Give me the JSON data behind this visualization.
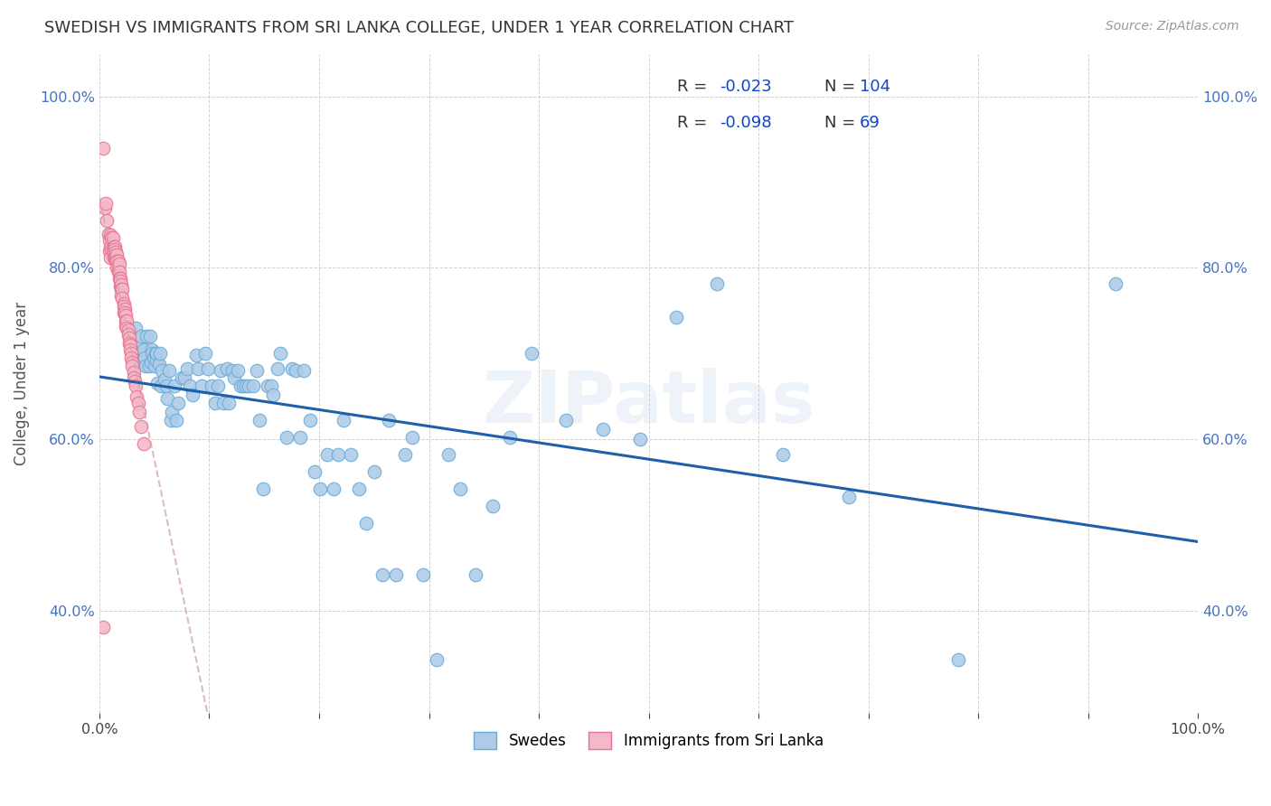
{
  "title": "SWEDISH VS IMMIGRANTS FROM SRI LANKA COLLEGE, UNDER 1 YEAR CORRELATION CHART",
  "source_text": "Source: ZipAtlas.com",
  "ylabel": "College, Under 1 year",
  "xlim": [
    0.0,
    1.0
  ],
  "ylim": [
    0.28,
    1.05
  ],
  "x_tick_labels": [
    "0.0%",
    "",
    "",
    "",
    "",
    "",
    "",
    "",
    "",
    "",
    "100.0%"
  ],
  "x_tick_vals": [
    0.0,
    0.1,
    0.2,
    0.3,
    0.4,
    0.5,
    0.6,
    0.7,
    0.8,
    0.9,
    1.0
  ],
  "y_tick_labels": [
    "40.0%",
    "60.0%",
    "80.0%",
    "100.0%"
  ],
  "y_tick_vals": [
    0.4,
    0.6,
    0.8,
    1.0
  ],
  "swedes_R": -0.023,
  "swedes_N": 104,
  "srilanka_R": -0.098,
  "srilanka_N": 69,
  "swede_color": "#aecce8",
  "srilanka_color": "#f5b8c8",
  "swede_edge_color": "#6aaad6",
  "srilanka_edge_color": "#e87090",
  "trend_blue": "#1f5faa",
  "trend_pink": "#cc6688",
  "legend_label_swedes": "Swedes",
  "legend_label_srilanka": "Immigrants from Sri Lanka",
  "watermark": "ZIPatlas",
  "background_color": "#ffffff",
  "swedes_x": [
    0.03,
    0.033,
    0.035,
    0.038,
    0.038,
    0.04,
    0.041,
    0.042,
    0.043,
    0.045,
    0.046,
    0.047,
    0.048,
    0.048,
    0.049,
    0.05,
    0.051,
    0.052,
    0.052,
    0.053,
    0.054,
    0.055,
    0.056,
    0.057,
    0.059,
    0.061,
    0.062,
    0.063,
    0.065,
    0.066,
    0.068,
    0.07,
    0.072,
    0.075,
    0.077,
    0.08,
    0.082,
    0.085,
    0.088,
    0.09,
    0.093,
    0.096,
    0.099,
    0.102,
    0.105,
    0.108,
    0.11,
    0.113,
    0.116,
    0.118,
    0.121,
    0.123,
    0.126,
    0.128,
    0.131,
    0.133,
    0.136,
    0.14,
    0.143,
    0.146,
    0.149,
    0.153,
    0.156,
    0.158,
    0.162,
    0.165,
    0.17,
    0.175,
    0.179,
    0.183,
    0.186,
    0.192,
    0.196,
    0.201,
    0.207,
    0.213,
    0.217,
    0.222,
    0.229,
    0.236,
    0.243,
    0.25,
    0.258,
    0.263,
    0.27,
    0.278,
    0.285,
    0.295,
    0.307,
    0.318,
    0.328,
    0.342,
    0.358,
    0.374,
    0.393,
    0.425,
    0.458,
    0.492,
    0.525,
    0.562,
    0.622,
    0.682,
    0.782,
    0.925
  ],
  "swedes_y": [
    0.7,
    0.73,
    0.69,
    0.71,
    0.72,
    0.705,
    0.695,
    0.685,
    0.72,
    0.685,
    0.72,
    0.69,
    0.705,
    0.7,
    0.695,
    0.685,
    0.7,
    0.692,
    0.7,
    0.665,
    0.688,
    0.7,
    0.662,
    0.68,
    0.67,
    0.662,
    0.648,
    0.68,
    0.622,
    0.632,
    0.662,
    0.622,
    0.642,
    0.672,
    0.672,
    0.682,
    0.662,
    0.652,
    0.698,
    0.682,
    0.662,
    0.7,
    0.682,
    0.662,
    0.642,
    0.662,
    0.68,
    0.642,
    0.682,
    0.642,
    0.68,
    0.672,
    0.68,
    0.662,
    0.662,
    0.662,
    0.662,
    0.662,
    0.68,
    0.622,
    0.542,
    0.662,
    0.662,
    0.652,
    0.682,
    0.7,
    0.602,
    0.682,
    0.68,
    0.602,
    0.68,
    0.622,
    0.562,
    0.542,
    0.582,
    0.542,
    0.582,
    0.622,
    0.582,
    0.542,
    0.502,
    0.562,
    0.442,
    0.622,
    0.442,
    0.582,
    0.602,
    0.442,
    0.342,
    0.582,
    0.542,
    0.442,
    0.522,
    0.602,
    0.7,
    0.622,
    0.612,
    0.6,
    0.742,
    0.782,
    0.582,
    0.532,
    0.342,
    0.782
  ],
  "srilanka_x": [
    0.003,
    0.005,
    0.006,
    0.007,
    0.008,
    0.009,
    0.009,
    0.01,
    0.01,
    0.01,
    0.011,
    0.011,
    0.012,
    0.012,
    0.013,
    0.013,
    0.014,
    0.014,
    0.014,
    0.015,
    0.015,
    0.015,
    0.016,
    0.016,
    0.016,
    0.017,
    0.017,
    0.017,
    0.018,
    0.018,
    0.018,
    0.019,
    0.019,
    0.019,
    0.02,
    0.02,
    0.02,
    0.021,
    0.021,
    0.022,
    0.022,
    0.022,
    0.023,
    0.023,
    0.024,
    0.024,
    0.024,
    0.025,
    0.025,
    0.026,
    0.026,
    0.027,
    0.027,
    0.028,
    0.028,
    0.029,
    0.029,
    0.03,
    0.03,
    0.031,
    0.031,
    0.032,
    0.033,
    0.034,
    0.035,
    0.036,
    0.038,
    0.04,
    0.003
  ],
  "srilanka_y": [
    0.94,
    0.87,
    0.875,
    0.855,
    0.84,
    0.832,
    0.82,
    0.838,
    0.825,
    0.812,
    0.835,
    0.822,
    0.835,
    0.822,
    0.825,
    0.812,
    0.825,
    0.822,
    0.812,
    0.818,
    0.81,
    0.808,
    0.815,
    0.808,
    0.8,
    0.808,
    0.8,
    0.795,
    0.805,
    0.795,
    0.788,
    0.788,
    0.785,
    0.778,
    0.78,
    0.775,
    0.768,
    0.775,
    0.765,
    0.758,
    0.755,
    0.748,
    0.752,
    0.748,
    0.745,
    0.738,
    0.732,
    0.738,
    0.73,
    0.728,
    0.722,
    0.718,
    0.712,
    0.71,
    0.705,
    0.7,
    0.695,
    0.69,
    0.685,
    0.678,
    0.672,
    0.668,
    0.662,
    0.65,
    0.642,
    0.632,
    0.615,
    0.595,
    0.38
  ]
}
